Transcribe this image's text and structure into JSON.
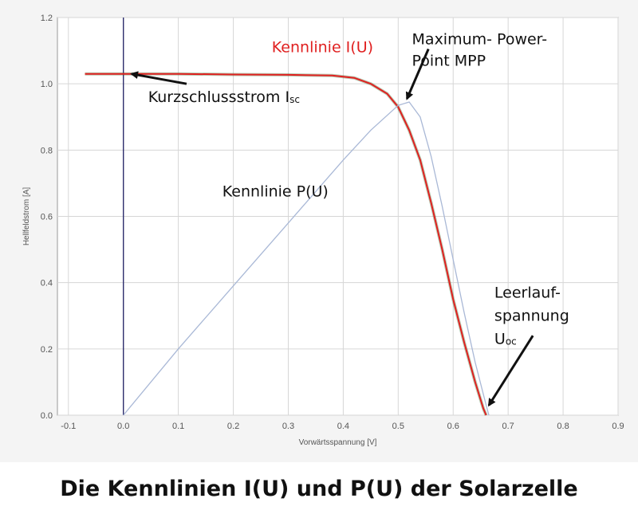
{
  "chart_data": {
    "type": "line",
    "xlabel": "Vorwärtsspannung [V]",
    "ylabel": "Hellfeldstrom [A]",
    "xlim": [
      -0.12,
      0.9
    ],
    "ylim": [
      0,
      1.2
    ],
    "x_ticks": [
      -0.1,
      0.0,
      0.1,
      0.2,
      0.3,
      0.4,
      0.5,
      0.6,
      0.7,
      0.8,
      0.9
    ],
    "y_ticks": [
      0.0,
      0.2,
      0.4,
      0.6,
      0.8,
      1.0,
      1.2
    ],
    "x_tick_labels": [
      "-0.1",
      "0.0",
      "0.1",
      "0.2",
      "0.3",
      "0.4",
      "0.5",
      "0.6",
      "0.7",
      "0.8",
      "0.9"
    ],
    "y_tick_labels": [
      "0.0",
      "0.2",
      "0.4",
      "0.6",
      "0.8",
      "1.0",
      "1.2"
    ],
    "grid": true,
    "series": [
      {
        "name": "Kennlinie I(U)",
        "color": "#e02020",
        "points": [
          [
            -0.07,
            1.03
          ],
          [
            0.0,
            1.03
          ],
          [
            0.1,
            1.03
          ],
          [
            0.2,
            1.028
          ],
          [
            0.3,
            1.027
          ],
          [
            0.38,
            1.025
          ],
          [
            0.42,
            1.018
          ],
          [
            0.45,
            1.0
          ],
          [
            0.48,
            0.97
          ],
          [
            0.5,
            0.93
          ],
          [
            0.52,
            0.86
          ],
          [
            0.54,
            0.77
          ],
          [
            0.56,
            0.64
          ],
          [
            0.58,
            0.5
          ],
          [
            0.6,
            0.35
          ],
          [
            0.62,
            0.22
          ],
          [
            0.64,
            0.1
          ],
          [
            0.655,
            0.02
          ],
          [
            0.66,
            0.0
          ]
        ]
      },
      {
        "name": "Kennlinie P(U)",
        "color": "#a9b8d6",
        "points": [
          [
            0.0,
            0.0
          ],
          [
            0.1,
            0.2
          ],
          [
            0.2,
            0.39
          ],
          [
            0.3,
            0.58
          ],
          [
            0.4,
            0.77
          ],
          [
            0.45,
            0.86
          ],
          [
            0.5,
            0.935
          ],
          [
            0.52,
            0.945
          ],
          [
            0.54,
            0.9
          ],
          [
            0.56,
            0.78
          ],
          [
            0.58,
            0.63
          ],
          [
            0.6,
            0.47
          ],
          [
            0.62,
            0.31
          ],
          [
            0.64,
            0.16
          ],
          [
            0.66,
            0.03
          ],
          [
            0.665,
            0.0
          ]
        ]
      }
    ],
    "annotations": [
      {
        "text": "Kennlinie I(U)",
        "x": 0.27,
        "y": 1.095,
        "color": "#e02020"
      },
      {
        "text": "Maximum- Power-",
        "x": 0.525,
        "y": 1.12
      },
      {
        "text": "Point MPP",
        "x": 0.525,
        "y": 1.055
      },
      {
        "text": "Kurzschlussstrom I",
        "sub": "sc",
        "x": 0.045,
        "y": 0.945
      },
      {
        "text": "Kennlinie P(U)",
        "x": 0.18,
        "y": 0.66
      },
      {
        "text": "Leerlauf-",
        "x": 0.675,
        "y": 0.355
      },
      {
        "text": "spannung",
        "x": 0.675,
        "y": 0.285
      },
      {
        "text": "U",
        "sub": "oc",
        "x": 0.675,
        "y": 0.215
      }
    ],
    "arrows": [
      {
        "from": [
          0.115,
          1.0
        ],
        "to": [
          0.015,
          1.03
        ]
      },
      {
        "from": [
          0.555,
          1.105
        ],
        "to": [
          0.516,
          0.955
        ]
      },
      {
        "from": [
          0.745,
          0.24
        ],
        "to": [
          0.665,
          0.03
        ]
      }
    ]
  },
  "caption": "Die Kennlinien I(U) und P(U) der Solarzelle"
}
